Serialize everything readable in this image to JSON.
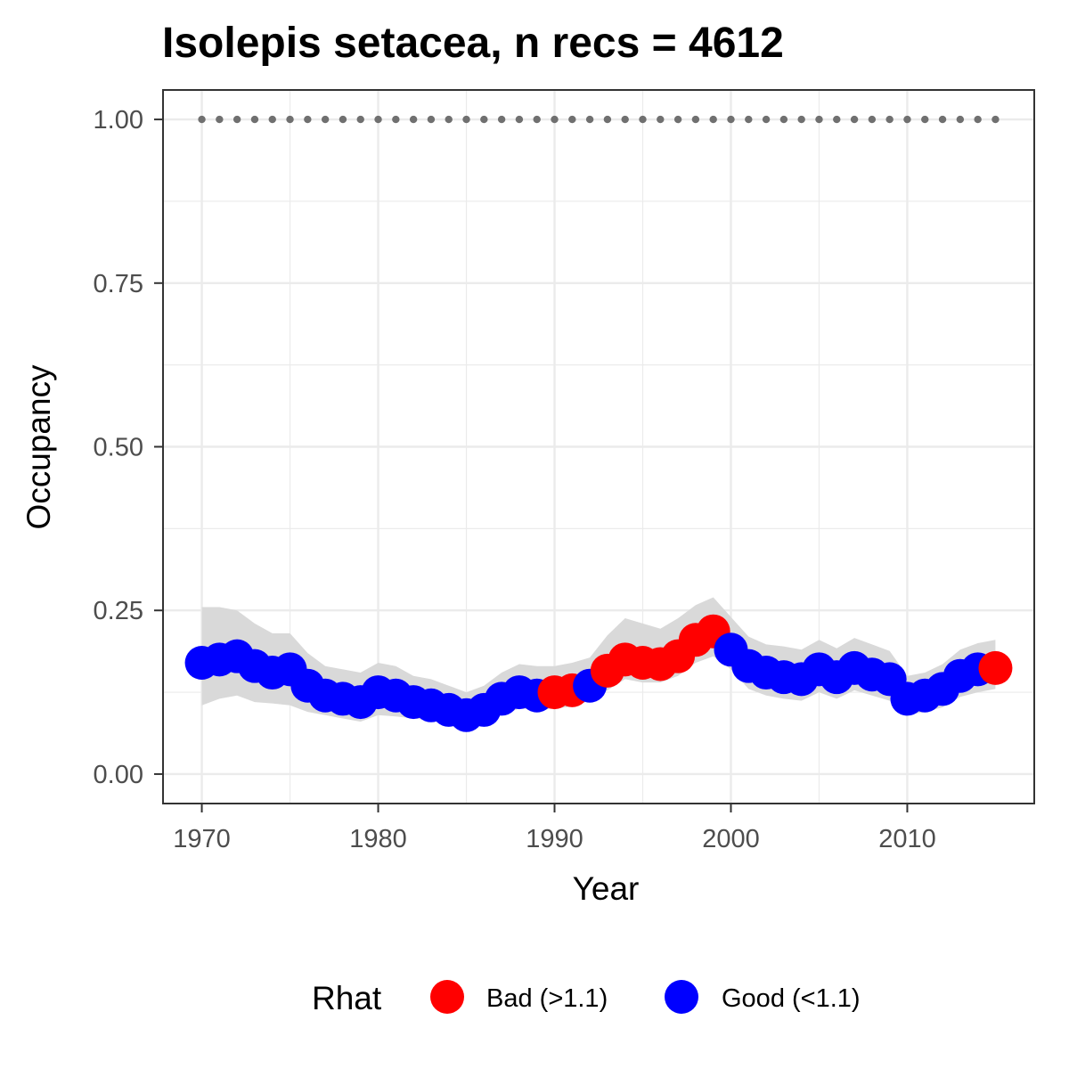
{
  "chart_data": {
    "type": "line",
    "title": "Isolepis setacea, n recs = 4612",
    "xlabel": "Year",
    "ylabel": "Occupancy",
    "xlim": [
      1967.8,
      2017.2
    ],
    "ylim": [
      -0.045,
      1.045
    ],
    "x_ticks": [
      1970,
      1980,
      1990,
      2000,
      2010
    ],
    "x_tick_labels": [
      "1970",
      "1980",
      "1990",
      "2000",
      "2010"
    ],
    "y_ticks": [
      0,
      0.25,
      0.5,
      0.75,
      1.0
    ],
    "y_tick_labels": [
      "0.00",
      "0.25",
      "0.50",
      "0.75",
      "1.00"
    ],
    "grid": true,
    "legend": {
      "title": "Rhat",
      "position": "bottom",
      "entries": [
        {
          "label": "Bad (>1.1)",
          "color": "#ff0000"
        },
        {
          "label": "Good (<1.1)",
          "color": "#0000ff"
        }
      ]
    },
    "colors": {
      "bad": "#ff0000",
      "good": "#0000ff",
      "ribbon": "#d9d9d9",
      "ref_line": "#707070"
    },
    "reference_line": {
      "y": 1.0,
      "style": "dotted"
    },
    "x": [
      1970,
      1971,
      1972,
      1973,
      1974,
      1975,
      1976,
      1977,
      1978,
      1979,
      1980,
      1981,
      1982,
      1983,
      1984,
      1985,
      1986,
      1987,
      1988,
      1989,
      1990,
      1991,
      1992,
      1993,
      1994,
      1995,
      1996,
      1997,
      1998,
      1999,
      2000,
      2001,
      2002,
      2003,
      2004,
      2005,
      2006,
      2007,
      2008,
      2009,
      2010,
      2011,
      2012,
      2013,
      2014,
      2015
    ],
    "occupancy": [
      0.17,
      0.175,
      0.18,
      0.165,
      0.155,
      0.16,
      0.135,
      0.12,
      0.115,
      0.11,
      0.125,
      0.12,
      0.11,
      0.105,
      0.098,
      0.09,
      0.098,
      0.115,
      0.125,
      0.12,
      0.125,
      0.128,
      0.135,
      0.158,
      0.175,
      0.17,
      0.168,
      0.18,
      0.205,
      0.218,
      0.19,
      0.165,
      0.155,
      0.148,
      0.145,
      0.16,
      0.148,
      0.162,
      0.152,
      0.145,
      0.115,
      0.12,
      0.13,
      0.15,
      0.16,
      0.162
    ],
    "lower": [
      0.105,
      0.115,
      0.12,
      0.11,
      0.108,
      0.105,
      0.095,
      0.09,
      0.085,
      0.08,
      0.09,
      0.088,
      0.085,
      0.082,
      0.076,
      0.07,
      0.078,
      0.09,
      0.1,
      0.098,
      0.1,
      0.103,
      0.112,
      0.128,
      0.145,
      0.14,
      0.14,
      0.15,
      0.17,
      0.18,
      0.16,
      0.13,
      0.12,
      0.115,
      0.112,
      0.125,
      0.115,
      0.128,
      0.12,
      0.112,
      0.09,
      0.095,
      0.102,
      0.118,
      0.125,
      0.13
    ],
    "upper": [
      0.255,
      0.255,
      0.25,
      0.23,
      0.215,
      0.215,
      0.185,
      0.165,
      0.16,
      0.155,
      0.17,
      0.165,
      0.15,
      0.145,
      0.135,
      0.125,
      0.135,
      0.155,
      0.168,
      0.165,
      0.165,
      0.17,
      0.178,
      0.212,
      0.238,
      0.23,
      0.222,
      0.238,
      0.258,
      0.27,
      0.24,
      0.21,
      0.198,
      0.195,
      0.19,
      0.205,
      0.192,
      0.208,
      0.198,
      0.188,
      0.15,
      0.155,
      0.168,
      0.19,
      0.2,
      0.205
    ],
    "rhat_status": [
      "good",
      "good",
      "good",
      "good",
      "good",
      "good",
      "good",
      "good",
      "good",
      "good",
      "good",
      "good",
      "good",
      "good",
      "good",
      "good",
      "good",
      "good",
      "good",
      "good",
      "bad",
      "bad",
      "good",
      "bad",
      "bad",
      "bad",
      "bad",
      "bad",
      "bad",
      "bad",
      "good",
      "good",
      "good",
      "good",
      "good",
      "good",
      "good",
      "good",
      "good",
      "good",
      "good",
      "good",
      "good",
      "good",
      "good",
      "bad"
    ]
  }
}
